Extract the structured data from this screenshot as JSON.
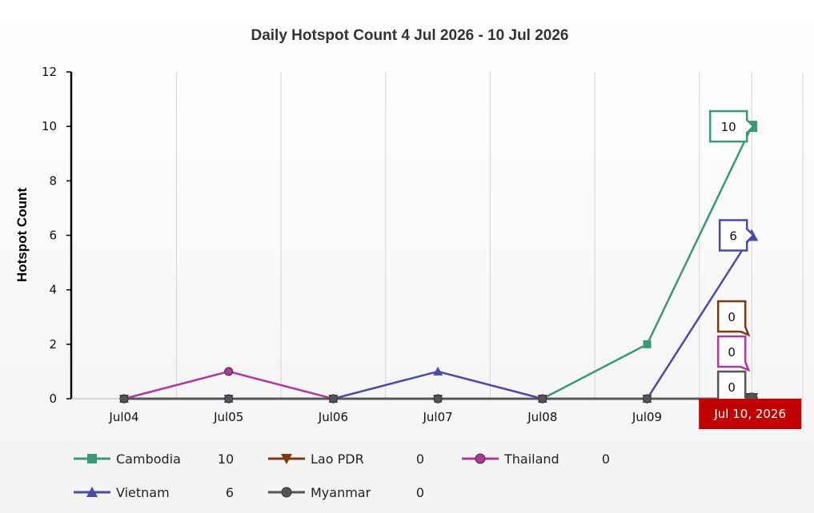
{
  "chart_data": {
    "type": "line",
    "title": "Daily Hotspot Count 4 Jul 2026 - 10 Jul 2026",
    "ylabel": "Hotspot Count",
    "xlabel": "",
    "categories": [
      "Jul04",
      "Jul05",
      "Jul06",
      "Jul07",
      "Jul08",
      "Jul09",
      "Jul10"
    ],
    "ylim": [
      0,
      12
    ],
    "yticks": [
      "0",
      "2",
      "4",
      "6",
      "8",
      "10",
      "12"
    ],
    "grid": "vertical",
    "legend_position": "bottom",
    "crosshair_label": "Jul 10, 2026",
    "series": [
      {
        "name": "Cambodia",
        "total": "10",
        "color": "#3a9b73",
        "marker": "square",
        "values": [
          0,
          0,
          0,
          0,
          0,
          2,
          10
        ]
      },
      {
        "name": "Lao PDR",
        "total": "0",
        "color": "#7a3a12",
        "marker": "triangle-down",
        "values": [
          0,
          0,
          0,
          0,
          0,
          0,
          0
        ]
      },
      {
        "name": "Thailand",
        "total": "0",
        "color": "#b0389a",
        "marker": "circle",
        "values": [
          0,
          1,
          0,
          0,
          0,
          0,
          0
        ]
      },
      {
        "name": "Vietnam",
        "total": "6",
        "color": "#4a4aa8",
        "marker": "triangle-up",
        "values": [
          0,
          0,
          0,
          1,
          0,
          0,
          6
        ]
      },
      {
        "name": "Myanmar",
        "total": "0",
        "color": "#555555",
        "marker": "circle",
        "values": [
          0,
          0,
          0,
          0,
          0,
          0,
          0
        ]
      }
    ],
    "tooltips": [
      {
        "series": "Cambodia",
        "text": "10"
      },
      {
        "series": "Vietnam",
        "text": "6"
      },
      {
        "series": "Lao PDR",
        "text": "0"
      },
      {
        "series": "Thailand",
        "text": "0"
      },
      {
        "series": "Myanmar",
        "text": "0"
      }
    ]
  }
}
